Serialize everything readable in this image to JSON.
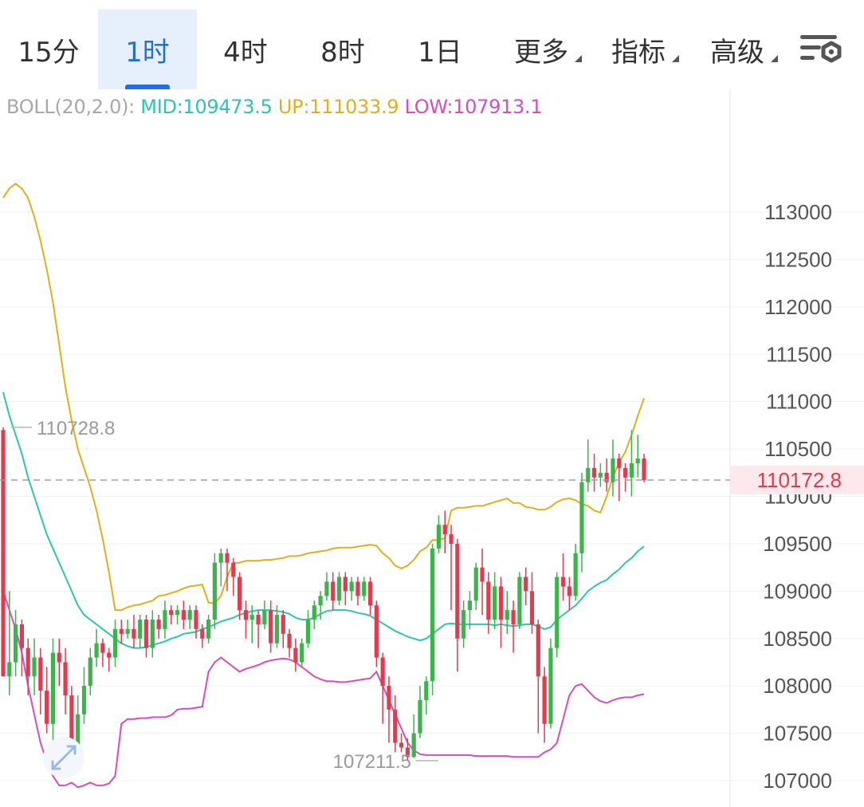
{
  "tabs": [
    {
      "label": "15分",
      "active": false,
      "dropdown": false
    },
    {
      "label": "1时",
      "active": true,
      "dropdown": false
    },
    {
      "label": "4时",
      "active": false,
      "dropdown": false
    },
    {
      "label": "8时",
      "active": false,
      "dropdown": false
    },
    {
      "label": "1日",
      "active": false,
      "dropdown": false
    },
    {
      "label": "更多",
      "active": false,
      "dropdown": true
    },
    {
      "label": "指标",
      "active": false,
      "dropdown": true
    },
    {
      "label": "高级",
      "active": false,
      "dropdown": true
    }
  ],
  "settings_icon": "chart-settings-icon",
  "indicator": {
    "label": "BOLL(20,2.0):",
    "mid": "MID:109473.5",
    "up": "UP:111033.9",
    "low": "LOW:107913.1"
  },
  "colors": {
    "accent": "#1f6fe0",
    "rise": "#3bb44a",
    "fall": "#e23b4f",
    "mid_line": "#2ec4b0",
    "up_line": "#e0b019",
    "low_line": "#d64dbb"
  },
  "price_axis": {
    "labels": [
      "113000",
      "112500",
      "112000",
      "111500",
      "111000",
      "110500",
      "110000",
      "109500",
      "109000",
      "108500",
      "108000",
      "107500",
      "107000"
    ]
  },
  "current_price": "110172.8",
  "high_marker": "110728.8",
  "low_marker": "107211.5",
  "chart_data": {
    "type": "candlestick",
    "ylim": [
      106900,
      113300
    ],
    "y_ticks": [
      113000,
      112500,
      112000,
      111500,
      111000,
      110500,
      110000,
      109500,
      109000,
      108500,
      108000,
      107500,
      107000
    ],
    "current_price": 110172.8,
    "candles": [
      [
        110700,
        108100,
        110730,
        108100
      ],
      [
        108100,
        108250,
        109000,
        107900
      ],
      [
        108250,
        108650,
        108800,
        108100
      ],
      [
        108650,
        108400,
        108700,
        108100
      ],
      [
        108400,
        108100,
        108500,
        107900
      ],
      [
        108100,
        108300,
        108500,
        107900
      ],
      [
        108300,
        107950,
        108400,
        107700
      ],
      [
        107950,
        107600,
        108200,
        107500
      ],
      [
        107600,
        108350,
        108500,
        107400
      ],
      [
        108350,
        108250,
        108500,
        108000
      ],
      [
        108250,
        107900,
        108400,
        107700
      ],
      [
        107900,
        107350,
        108000,
        107280
      ],
      [
        107350,
        107700,
        107900,
        107300
      ],
      [
        107700,
        108000,
        108200,
        107600
      ],
      [
        108000,
        108300,
        108400,
        107900
      ],
      [
        108300,
        108450,
        108600,
        108200
      ],
      [
        108450,
        108350,
        108500,
        108200
      ],
      [
        108350,
        108300,
        108400,
        108150
      ],
      [
        108300,
        108600,
        108700,
        108200
      ],
      [
        108600,
        108550,
        108700,
        108450
      ],
      [
        108550,
        108600,
        108700,
        108500
      ],
      [
        108600,
        108500,
        108750,
        108400
      ],
      [
        108500,
        108700,
        108750,
        108400
      ],
      [
        108700,
        108400,
        108750,
        108300
      ],
      [
        108400,
        108700,
        108800,
        108300
      ],
      [
        108700,
        108600,
        108750,
        108500
      ],
      [
        108600,
        108800,
        108900,
        108500
      ],
      [
        108800,
        108750,
        108850,
        108650
      ],
      [
        108750,
        108800,
        108850,
        108650
      ],
      [
        108800,
        108700,
        108900,
        108600
      ],
      [
        108700,
        108800,
        108850,
        108600
      ],
      [
        108800,
        108600,
        108850,
        108500
      ],
      [
        108600,
        108500,
        108650,
        108400
      ],
      [
        108500,
        108700,
        108750,
        108450
      ],
      [
        108700,
        109300,
        109400,
        108600
      ],
      [
        109300,
        109400,
        109450,
        109050
      ],
      [
        109400,
        109300,
        109450,
        109000
      ],
      [
        109300,
        109150,
        109350,
        108950
      ],
      [
        109150,
        108800,
        109200,
        108700
      ],
      [
        108800,
        108700,
        108900,
        108500
      ],
      [
        108700,
        108750,
        108850,
        108450
      ],
      [
        108750,
        108650,
        108800,
        108400
      ],
      [
        108650,
        108800,
        108900,
        108600
      ],
      [
        108800,
        108450,
        108900,
        108350
      ],
      [
        108450,
        108750,
        108850,
        108400
      ],
      [
        108750,
        108550,
        108800,
        108400
      ],
      [
        108550,
        108400,
        108600,
        108300
      ],
      [
        108400,
        108250,
        108500,
        108150
      ],
      [
        108250,
        108450,
        108500,
        108200
      ],
      [
        108450,
        108700,
        108800,
        108400
      ],
      [
        108700,
        108850,
        108900,
        108600
      ],
      [
        108850,
        108950,
        109000,
        108700
      ],
      [
        108950,
        109100,
        109200,
        108900
      ],
      [
        109100,
        108900,
        109200,
        108800
      ],
      [
        108900,
        109150,
        109200,
        108850
      ],
      [
        109150,
        109000,
        109200,
        108850
      ],
      [
        109000,
        109100,
        109150,
        108900
      ],
      [
        109100,
        108950,
        109150,
        108850
      ],
      [
        108950,
        109100,
        109150,
        108900
      ],
      [
        109100,
        108850,
        109150,
        108750
      ],
      [
        108850,
        108300,
        108900,
        108200
      ],
      [
        108300,
        108000,
        108350,
        107600
      ],
      [
        108000,
        107750,
        108100,
        107400
      ],
      [
        107750,
        107400,
        107900,
        107300
      ],
      [
        107400,
        107350,
        107500,
        107300
      ],
      [
        107350,
        107250,
        107450,
        107210
      ],
      [
        107250,
        107500,
        107700,
        107240
      ],
      [
        107500,
        107850,
        108000,
        107450
      ],
      [
        107850,
        108050,
        108100,
        107700
      ],
      [
        108050,
        109450,
        109500,
        107900
      ],
      [
        109450,
        109700,
        109800,
        109400
      ],
      [
        109700,
        109600,
        109850,
        109400
      ],
      [
        109600,
        109500,
        109700,
        108800
      ],
      [
        109500,
        108500,
        109550,
        108150
      ],
      [
        108500,
        108800,
        108900,
        108400
      ],
      [
        108800,
        108900,
        109000,
        108600
      ],
      [
        108900,
        109250,
        109300,
        108800
      ],
      [
        109250,
        109100,
        109450,
        108750
      ],
      [
        109100,
        108700,
        109200,
        108550
      ],
      [
        108700,
        109050,
        109200,
        108600
      ],
      [
        109050,
        108700,
        109150,
        108400
      ],
      [
        108700,
        108800,
        109000,
        108550
      ],
      [
        108800,
        108650,
        108900,
        108350
      ],
      [
        108650,
        109150,
        109200,
        108600
      ],
      [
        109150,
        109000,
        109250,
        108850
      ],
      [
        109000,
        108650,
        109200,
        108550
      ],
      [
        108650,
        108100,
        108700,
        107500
      ],
      [
        108100,
        107600,
        108200,
        107400
      ],
      [
        107600,
        108400,
        108500,
        107550
      ],
      [
        108400,
        109150,
        109200,
        108300
      ],
      [
        109150,
        109050,
        109400,
        108900
      ],
      [
        109050,
        108950,
        109150,
        108800
      ],
      [
        108950,
        109400,
        109500,
        108900
      ],
      [
        109400,
        110150,
        110250,
        109200
      ],
      [
        110150,
        110300,
        110600,
        110050
      ],
      [
        110300,
        110200,
        110450,
        110050
      ],
      [
        110200,
        110250,
        110350,
        110100
      ],
      [
        110250,
        110150,
        110400,
        110050
      ],
      [
        110150,
        110400,
        110600,
        110000
      ],
      [
        110400,
        110300,
        110450,
        109950
      ],
      [
        110300,
        110200,
        110350,
        110050
      ],
      [
        110200,
        110350,
        110700,
        110000
      ],
      [
        110350,
        110400,
        110650,
        110200
      ],
      [
        110400,
        110172.8,
        110450,
        110150
      ]
    ],
    "series": [
      {
        "name": "MID",
        "values": [
          111100,
          110850,
          110650,
          110450,
          110200,
          110000,
          109800,
          109600,
          109450,
          109300,
          109150,
          109000,
          108850,
          108750,
          108700,
          108650,
          108600,
          108550,
          108500,
          108450,
          108420,
          108400,
          108400,
          108410,
          108430,
          108450,
          108470,
          108500,
          108520,
          108550,
          108560,
          108570,
          108600,
          108620,
          108650,
          108680,
          108700,
          108720,
          108750,
          108770,
          108790,
          108800,
          108800,
          108800,
          108790,
          108780,
          108760,
          108720,
          108700,
          108700,
          108720,
          108760,
          108790,
          108800,
          108800,
          108800,
          108790,
          108770,
          108760,
          108740,
          108700,
          108660,
          108620,
          108580,
          108550,
          108520,
          108500,
          108480,
          108500,
          108550,
          108600,
          108650,
          108660,
          108650,
          108650,
          108650,
          108650,
          108650,
          108650,
          108640,
          108650,
          108640,
          108630,
          108640,
          108650,
          108650,
          108630,
          108600,
          108620,
          108700,
          108750,
          108800,
          108850,
          108920,
          109000,
          109050,
          109090,
          109120,
          109180,
          109230,
          109300,
          109350,
          109420,
          109473.5
        ]
      },
      {
        "name": "UP",
        "values": [
          113150,
          113250,
          113300,
          113250,
          113150,
          112950,
          112700,
          112400,
          112050,
          111600,
          111150,
          110800,
          110500,
          110300,
          110100,
          109850,
          109550,
          109200,
          108800,
          108800,
          108830,
          108850,
          108860,
          108880,
          108900,
          108950,
          108960,
          108980,
          109000,
          109030,
          109050,
          109060,
          109070,
          108880,
          108870,
          108950,
          109150,
          109300,
          109300,
          109320,
          109320,
          109320,
          109330,
          109330,
          109340,
          109350,
          109370,
          109370,
          109380,
          109400,
          109410,
          109420,
          109430,
          109450,
          109460,
          109460,
          109460,
          109470,
          109480,
          109490,
          109480,
          109400,
          109350,
          109270,
          109240,
          109270,
          109330,
          109420,
          109460,
          109540,
          109540,
          109560,
          109850,
          109880,
          109880,
          109890,
          109900,
          109900,
          109920,
          109940,
          109960,
          109980,
          109930,
          109930,
          109890,
          109880,
          109860,
          109860,
          109890,
          109940,
          109970,
          109980,
          109960,
          109920,
          109900,
          109850,
          109830,
          110000,
          110200,
          110360,
          110470,
          110650,
          110850,
          111033.9
        ]
      },
      {
        "name": "LOW",
        "values": [
          109000,
          108800,
          108600,
          108350,
          108000,
          107700,
          107400,
          107200,
          107050,
          106950,
          106950,
          106980,
          106930,
          106950,
          106980,
          106950,
          106950,
          106970,
          107050,
          107600,
          107650,
          107650,
          107660,
          107660,
          107670,
          107670,
          107670,
          107690,
          107750,
          107760,
          107760,
          107770,
          107780,
          108150,
          108250,
          108300,
          108250,
          108200,
          108150,
          108180,
          108200,
          108220,
          108250,
          108270,
          108280,
          108290,
          108280,
          108250,
          108200,
          108150,
          108100,
          108070,
          108050,
          108050,
          108040,
          108040,
          108050,
          108060,
          108070,
          108080,
          108150,
          108000,
          107850,
          107700,
          107550,
          107400,
          107320,
          107280,
          107270,
          107270,
          107270,
          107270,
          107270,
          107270,
          107270,
          107270,
          107260,
          107260,
          107260,
          107260,
          107260,
          107260,
          107250,
          107250,
          107250,
          107250,
          107250,
          107300,
          107330,
          107400,
          107650,
          107900,
          108000,
          108020,
          107950,
          107880,
          107840,
          107820,
          107850,
          107870,
          107880,
          107880,
          107900,
          107913.1
        ]
      }
    ]
  }
}
